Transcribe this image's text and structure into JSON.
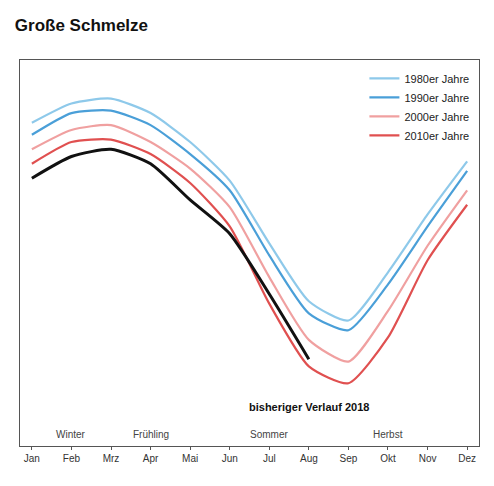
{
  "chart_data": {
    "type": "line",
    "title": "Große Schmelze",
    "categories": [
      "Jan",
      "Feb",
      "Mrz",
      "Apr",
      "Mai",
      "Jun",
      "Jul",
      "Aug",
      "Sep",
      "Okt",
      "Nov",
      "Dez"
    ],
    "series": [
      {
        "name": "1980er Jahre",
        "color": "#8ec9ea",
        "values": [
          15.4,
          16.2,
          16.4,
          15.8,
          14.6,
          13.0,
          10.4,
          8.0,
          7.2,
          9.2,
          11.6,
          13.8
        ]
      },
      {
        "name": "1990er Jahre",
        "color": "#4a9fd8",
        "values": [
          14.9,
          15.8,
          15.9,
          15.3,
          14.1,
          12.6,
          9.9,
          7.5,
          6.8,
          8.7,
          11.1,
          13.4
        ]
      },
      {
        "name": "2000er Jahre",
        "color": "#f0a0a0",
        "values": [
          14.3,
          15.1,
          15.3,
          14.6,
          13.5,
          11.9,
          9.0,
          6.4,
          5.5,
          7.6,
          10.3,
          12.6
        ]
      },
      {
        "name": "2010er Jahre",
        "color": "#e05050",
        "values": [
          13.7,
          14.6,
          14.7,
          14.1,
          12.9,
          11.1,
          7.9,
          5.3,
          4.6,
          6.5,
          9.7,
          12.0
        ]
      },
      {
        "name": "bisheriger Verlauf 2018",
        "color": "#111111",
        "values": [
          13.1,
          14.0,
          14.3,
          13.7,
          12.2,
          10.8,
          8.3,
          5.6,
          null,
          null,
          null,
          null
        ]
      }
    ],
    "annotations": [
      {
        "text": "Winter",
        "at": "Feb"
      },
      {
        "text": "Frühling",
        "at": "Apr"
      },
      {
        "text": "Sommer",
        "at": "Jul"
      },
      {
        "text": "Herbst",
        "at": "Okt"
      },
      {
        "text": "bisheriger Verlauf 2018",
        "at": "Aug"
      }
    ],
    "ylim": [
      2,
      18
    ],
    "tick_labels": "x",
    "grid": false,
    "legend": "top right"
  }
}
